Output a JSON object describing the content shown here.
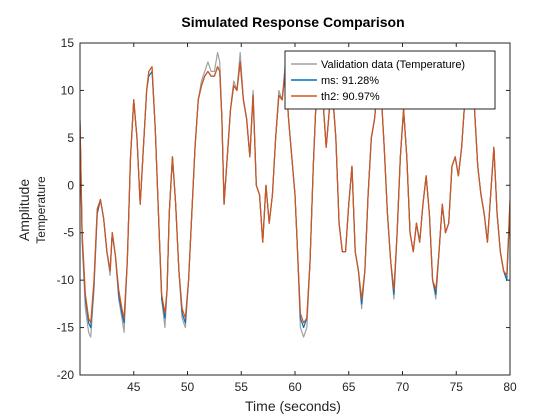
{
  "chart_data": {
    "type": "line",
    "title": "Simulated Response Comparison",
    "xlabel": "Time (seconds)",
    "ylabel": "Amplitude",
    "ylabel_sub": "Temperature",
    "xlim": [
      40,
      80
    ],
    "ylim": [
      -20,
      15
    ],
    "xticks": [
      45,
      50,
      55,
      60,
      65,
      70,
      75,
      80
    ],
    "yticks": [
      -20,
      -15,
      -10,
      -5,
      0,
      5,
      10,
      15
    ],
    "grid": false,
    "legend_position": "top-right",
    "series": [
      {
        "name": "Validation data (Temperature)",
        "color": "#a0a0a0",
        "x": [
          40,
          40.2,
          40.5,
          40.8,
          41,
          41.3,
          41.6,
          41.9,
          42.2,
          42.5,
          42.8,
          43,
          43.3,
          43.6,
          43.9,
          44.1,
          44.4,
          44.7,
          45,
          45.3,
          45.6,
          45.9,
          46.2,
          46.4,
          46.7,
          47,
          47.3,
          47.6,
          47.9,
          48.1,
          48.3,
          48.6,
          48.9,
          49.2,
          49.5,
          49.8,
          50.1,
          50.4,
          50.7,
          51,
          51.3,
          51.6,
          51.9,
          52.2,
          52.5,
          52.8,
          53,
          53.2,
          53.4,
          53.7,
          54,
          54.3,
          54.6,
          54.9,
          55.2,
          55.5,
          55.8,
          56.1,
          56.4,
          56.7,
          57,
          57.3,
          57.6,
          57.9,
          58.2,
          58.5,
          58.8,
          59.1,
          59.4,
          59.7,
          60,
          60.2,
          60.5,
          60.8,
          61.1,
          61.4,
          61.7,
          62,
          62.3,
          62.6,
          62.9,
          63.2,
          63.5,
          63.8,
          64.1,
          64.4,
          64.7,
          65,
          65.3,
          65.6,
          65.9,
          66.2,
          66.5,
          66.8,
          67.1,
          67.4,
          67.7,
          68,
          68.3,
          68.6,
          68.9,
          69.2,
          69.5,
          69.8,
          70.1,
          70.4,
          70.7,
          71,
          71.3,
          71.6,
          71.9,
          72.2,
          72.5,
          72.8,
          73.1,
          73.4,
          73.7,
          74,
          74.3,
          74.6,
          74.9,
          75.2,
          75.5,
          75.8,
          76.1,
          76.4,
          76.7,
          77,
          77.3,
          77.6,
          77.9,
          78.2,
          78.5,
          78.8,
          79.1,
          79.4,
          79.7,
          80
        ],
        "y": [
          7,
          -6,
          -13,
          -15.5,
          -16,
          -11,
          -3,
          -1.5,
          -3.5,
          -7,
          -9.5,
          -5,
          -7.5,
          -12,
          -14,
          -15.5,
          -8,
          3,
          9,
          5,
          -2,
          4,
          10,
          12,
          12.5,
          6,
          -3,
          -12,
          -15,
          -11,
          -3,
          3,
          -2,
          -9,
          -14,
          -15,
          -10,
          -3,
          4,
          9,
          11,
          12,
          13,
          12,
          12,
          14,
          13,
          7,
          -2,
          3,
          8,
          11,
          10,
          14,
          9,
          7,
          3,
          10,
          0,
          -1,
          -6,
          0,
          -4,
          -1,
          5,
          10,
          9,
          13,
          7,
          3,
          -1,
          -6,
          -15,
          -16,
          -15,
          -8,
          2,
          10,
          13,
          9,
          4,
          8,
          10,
          5,
          -4,
          -7,
          -7,
          -2,
          2,
          -7,
          -9,
          -13,
          -9,
          -1,
          5,
          7,
          11,
          10,
          4,
          -3,
          -8,
          -12,
          -5,
          3,
          8,
          3,
          -5,
          -7,
          -4,
          -6,
          -2,
          1,
          -3,
          -10,
          -12,
          -7,
          -2,
          -5,
          -4,
          2,
          3,
          1,
          4,
          9,
          12,
          13,
          8,
          2,
          -1,
          -3,
          -6,
          -1,
          4,
          -3,
          -7,
          -9,
          -10,
          -2
        ]
      },
      {
        "name": "ms: 91.28%",
        "color": "#0072bd",
        "x": [
          40,
          40.2,
          40.5,
          40.8,
          41,
          41.3,
          41.6,
          41.9,
          42.2,
          42.5,
          42.8,
          43,
          43.3,
          43.6,
          43.9,
          44.1,
          44.4,
          44.7,
          45,
          45.3,
          45.6,
          45.9,
          46.2,
          46.4,
          46.7,
          47,
          47.3,
          47.6,
          47.9,
          48.1,
          48.3,
          48.6,
          48.9,
          49.2,
          49.5,
          49.8,
          50.1,
          50.4,
          50.7,
          51,
          51.3,
          51.6,
          51.9,
          52.2,
          52.5,
          52.8,
          53,
          53.2,
          53.4,
          53.7,
          54,
          54.3,
          54.6,
          54.9,
          55.2,
          55.5,
          55.8,
          56.1,
          56.4,
          56.7,
          57,
          57.3,
          57.6,
          57.9,
          58.2,
          58.5,
          58.8,
          59.1,
          59.4,
          59.7,
          60,
          60.2,
          60.5,
          60.8,
          61.1,
          61.4,
          61.7,
          62,
          62.3,
          62.6,
          62.9,
          63.2,
          63.5,
          63.8,
          64.1,
          64.4,
          64.7,
          65,
          65.3,
          65.6,
          65.9,
          66.2,
          66.5,
          66.8,
          67.1,
          67.4,
          67.7,
          68,
          68.3,
          68.6,
          68.9,
          69.2,
          69.5,
          69.8,
          70.1,
          70.4,
          70.7,
          71,
          71.3,
          71.6,
          71.9,
          72.2,
          72.5,
          72.8,
          73.1,
          73.4,
          73.7,
          74,
          74.3,
          74.6,
          74.9,
          75.2,
          75.5,
          75.8,
          76.1,
          76.4,
          76.7,
          77,
          77.3,
          77.6,
          77.9,
          78.2,
          78.5,
          78.8,
          79.1,
          79.4,
          79.7,
          80
        ],
        "y": [
          6.5,
          -5.5,
          -12,
          -14.5,
          -15,
          -10.5,
          -3,
          -1.5,
          -3.5,
          -7,
          -9,
          -5,
          -7.5,
          -11.5,
          -13.5,
          -14.5,
          -8,
          3,
          9,
          5,
          -2,
          4,
          10,
          11.5,
          12,
          6,
          -3,
          -12,
          -14,
          -11,
          -3,
          3,
          -2,
          -9,
          -13.5,
          -14.5,
          -10,
          -3,
          4,
          9,
          10.5,
          11.5,
          12,
          11.5,
          11.5,
          12.5,
          12,
          7,
          -2,
          3,
          8,
          10.5,
          10,
          13,
          9,
          7,
          3,
          9.5,
          0,
          -1,
          -6,
          0,
          -4,
          -1,
          5,
          9.5,
          9,
          12,
          7,
          3,
          -1,
          -6,
          -14,
          -15,
          -14,
          -8,
          2,
          10,
          12.5,
          9,
          4,
          8,
          9.5,
          5,
          -4,
          -7,
          -7,
          -2,
          2,
          -7,
          -9,
          -12.5,
          -9,
          -1,
          5,
          7,
          10.5,
          10,
          4,
          -3,
          -8,
          -11.5,
          -5,
          3,
          8,
          3,
          -5,
          -7,
          -4,
          -6,
          -2,
          1,
          -3,
          -10,
          -11.5,
          -7,
          -2,
          -5,
          -4,
          2,
          3,
          1,
          4,
          9,
          11.5,
          12.5,
          8,
          2,
          -1,
          -3,
          -6,
          -1,
          4,
          -3,
          -7,
          -9,
          -10,
          -2
        ]
      },
      {
        "name": "th2: 90.97%",
        "color": "#d95319",
        "x": [
          40,
          40.2,
          40.5,
          40.8,
          41,
          41.3,
          41.6,
          41.9,
          42.2,
          42.5,
          42.8,
          43,
          43.3,
          43.6,
          43.9,
          44.1,
          44.4,
          44.7,
          45,
          45.3,
          45.6,
          45.9,
          46.2,
          46.4,
          46.7,
          47,
          47.3,
          47.6,
          47.9,
          48.1,
          48.3,
          48.6,
          48.9,
          49.2,
          49.5,
          49.8,
          50.1,
          50.4,
          50.7,
          51,
          51.3,
          51.6,
          51.9,
          52.2,
          52.5,
          52.8,
          53,
          53.2,
          53.4,
          53.7,
          54,
          54.3,
          54.6,
          54.9,
          55.2,
          55.5,
          55.8,
          56.1,
          56.4,
          56.7,
          57,
          57.3,
          57.6,
          57.9,
          58.2,
          58.5,
          58.8,
          59.1,
          59.4,
          59.7,
          60,
          60.2,
          60.5,
          60.8,
          61.1,
          61.4,
          61.7,
          62,
          62.3,
          62.6,
          62.9,
          63.2,
          63.5,
          63.8,
          64.1,
          64.4,
          64.7,
          65,
          65.3,
          65.6,
          65.9,
          66.2,
          66.5,
          66.8,
          67.1,
          67.4,
          67.7,
          68,
          68.3,
          68.6,
          68.9,
          69.2,
          69.5,
          69.8,
          70.1,
          70.4,
          70.7,
          71,
          71.3,
          71.6,
          71.9,
          72.2,
          72.5,
          72.8,
          73.1,
          73.4,
          73.7,
          74,
          74.3,
          74.6,
          74.9,
          75.2,
          75.5,
          75.8,
          76.1,
          76.4,
          76.7,
          77,
          77.3,
          77.6,
          77.9,
          78.2,
          78.5,
          78.8,
          79.1,
          79.4,
          79.7,
          80
        ],
        "y": [
          6.8,
          -5,
          -11.5,
          -14,
          -14.5,
          -10,
          -2.5,
          -1.5,
          -3.5,
          -7,
          -9,
          -5,
          -7.5,
          -11,
          -13,
          -14,
          -8,
          3,
          9,
          5,
          -2,
          4,
          10,
          12,
          12.5,
          6,
          -3,
          -11.5,
          -13.5,
          -11,
          -3,
          3,
          -2,
          -9,
          -13,
          -14,
          -10,
          -3,
          4,
          9,
          10.5,
          11.5,
          12,
          11.5,
          11.5,
          12.5,
          12,
          7,
          -2,
          3,
          8,
          10.5,
          10,
          13,
          9,
          7,
          3,
          9.5,
          0,
          -1,
          -6,
          0,
          -4,
          -1,
          5,
          9.5,
          9,
          12,
          7,
          3,
          -1,
          -6,
          -13.5,
          -14.5,
          -14,
          -8,
          2,
          10,
          12.5,
          9,
          4,
          8,
          9.5,
          5,
          -4,
          -7,
          -7,
          -2,
          2,
          -7,
          -9,
          -12,
          -9,
          -1,
          5,
          7,
          10.5,
          10,
          4,
          -3,
          -8,
          -11,
          -5,
          3,
          8,
          3,
          -5,
          -7,
          -4,
          -6,
          -2,
          1,
          -3,
          -10,
          -11,
          -7,
          -2,
          -5,
          -4,
          2,
          3,
          1,
          4,
          9,
          11.5,
          12.5,
          8,
          2,
          -1,
          -3,
          -6,
          -1,
          4,
          -3,
          -7,
          -9,
          -9.5,
          -1.5
        ]
      }
    ]
  }
}
